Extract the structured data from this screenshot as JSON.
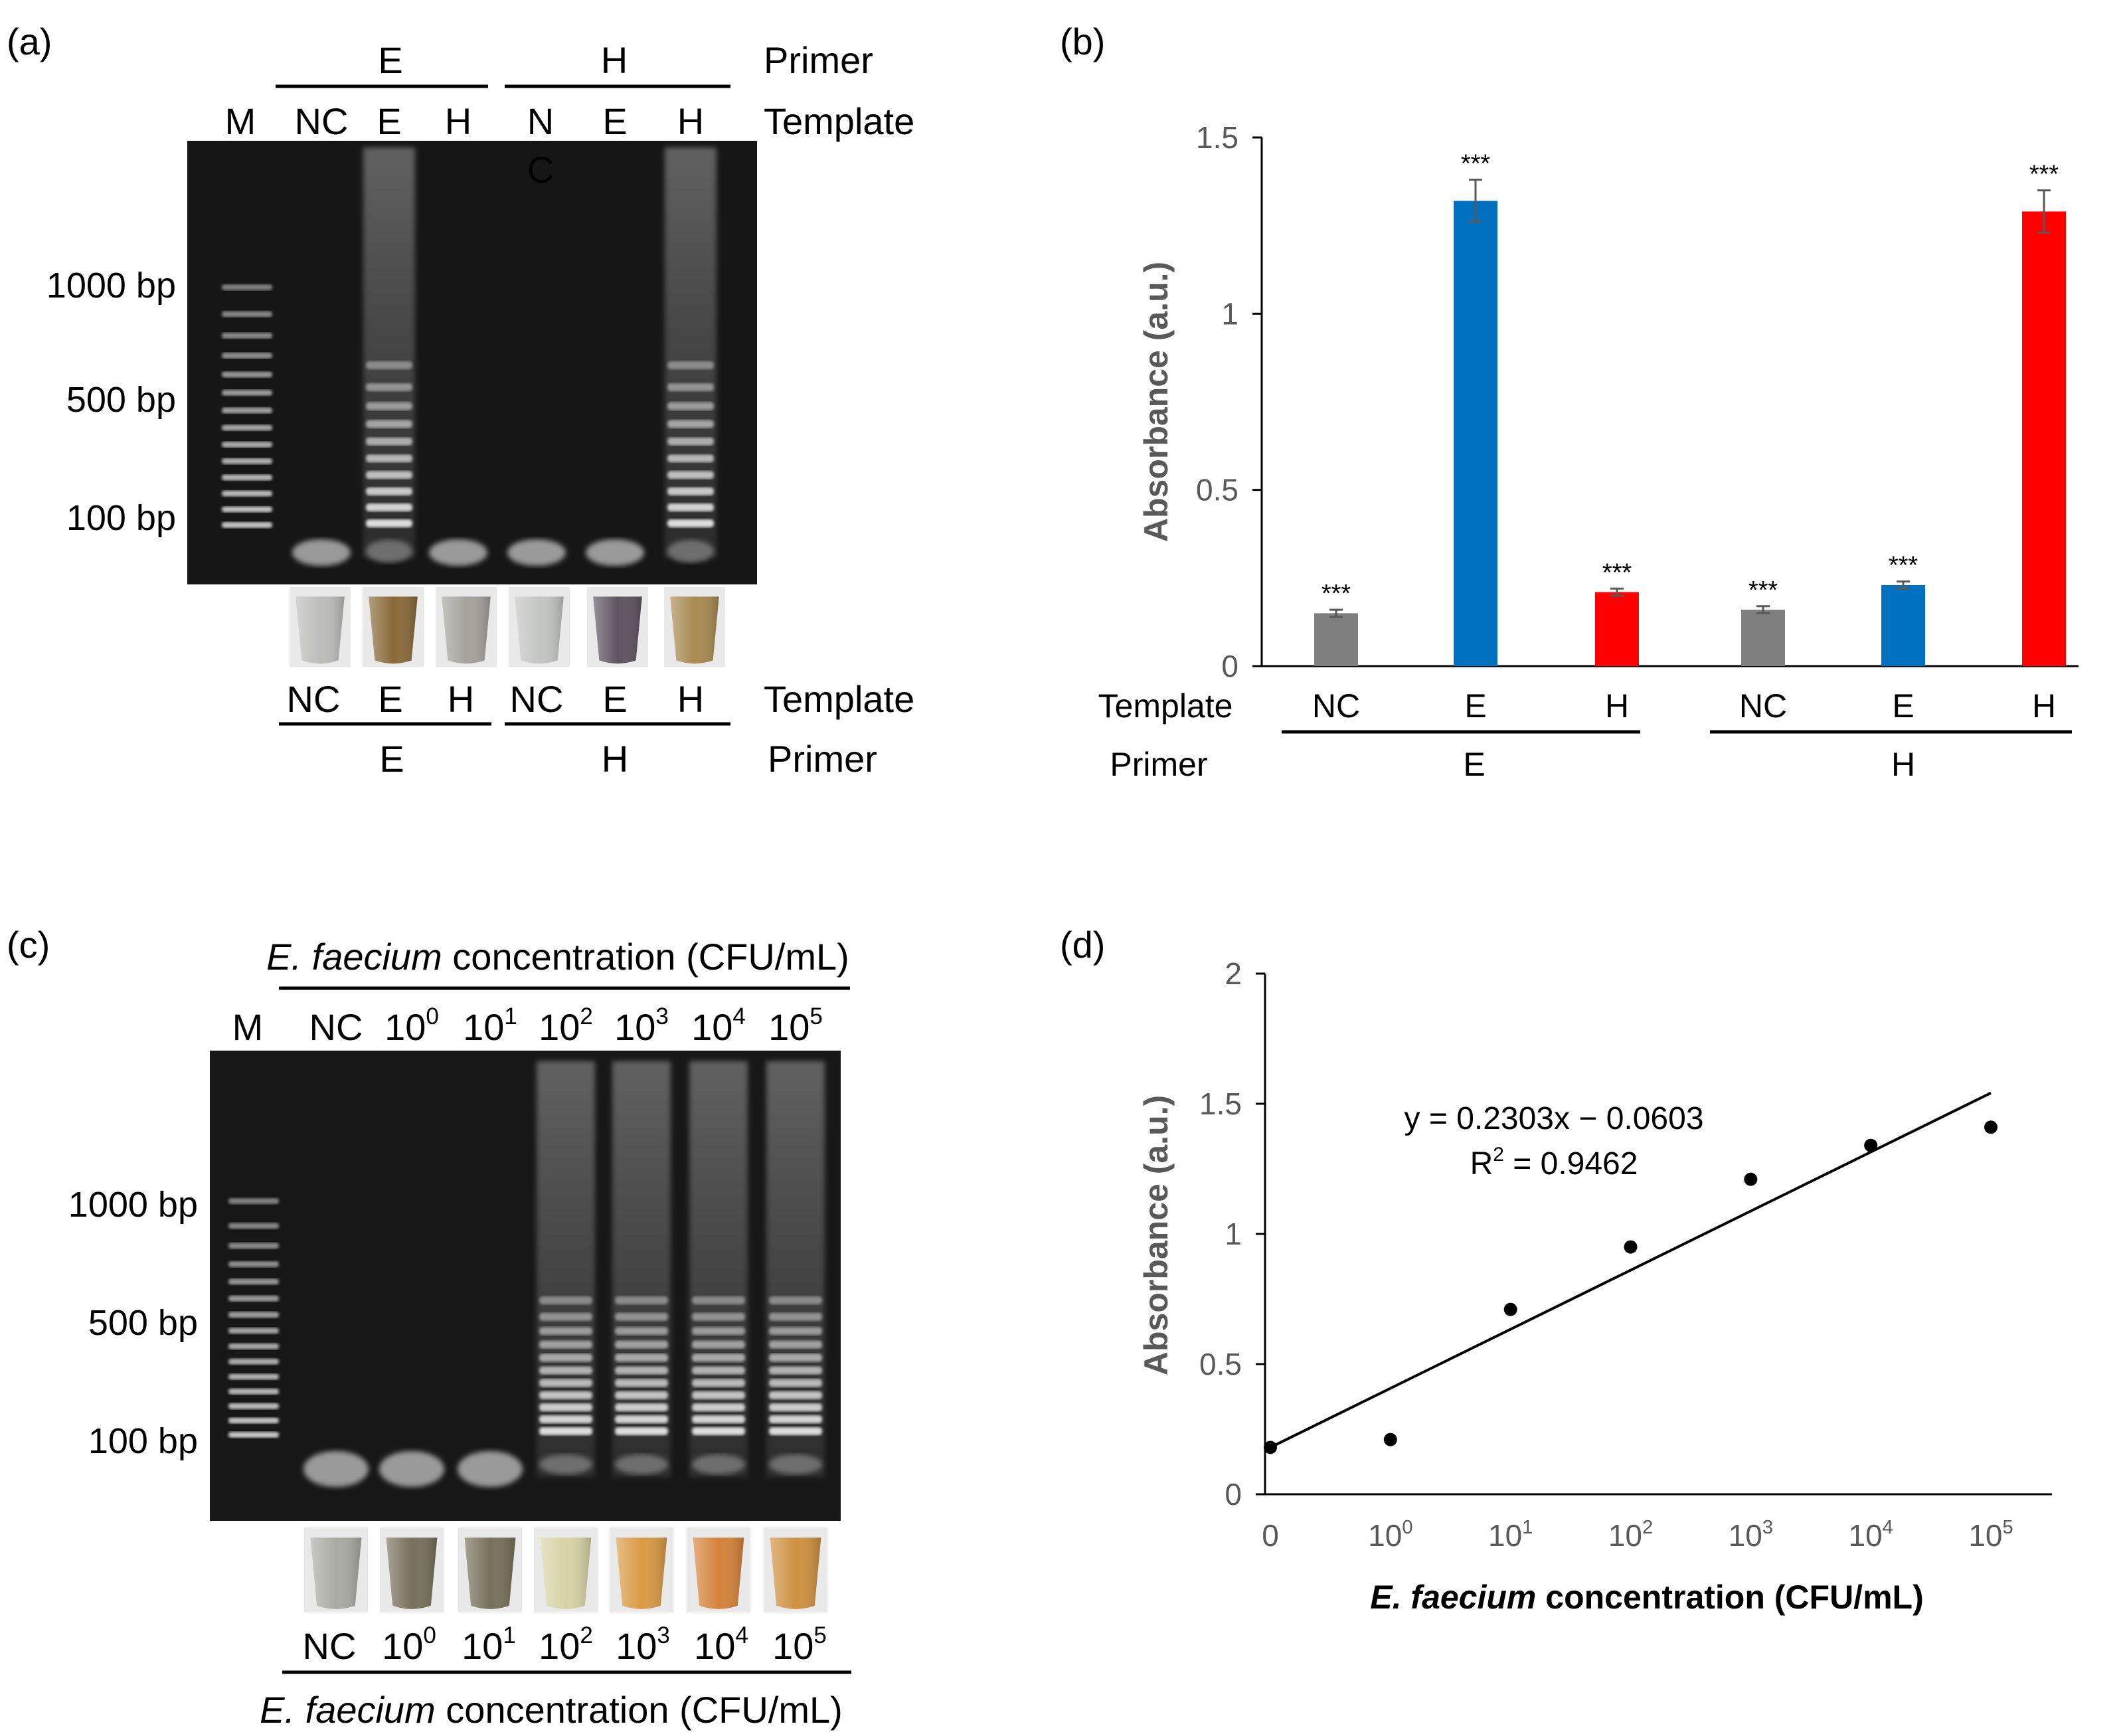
{
  "panels": {
    "a": {
      "label": "(a)",
      "primer_header": {
        "label": "Primer",
        "groups": [
          "E",
          "H"
        ]
      },
      "template_header": {
        "label": "Template",
        "lanes": [
          "M",
          "NC",
          "E",
          "H",
          "N",
          "E",
          "H"
        ],
        "stray": "C"
      },
      "bp_labels": [
        "1000 bp",
        "500 bp",
        "100 bp"
      ],
      "bottom_template": {
        "label": "Template",
        "lanes": [
          "NC",
          "E",
          "H",
          "NC",
          "E",
          "H"
        ]
      },
      "bottom_primer": {
        "label": "Primer",
        "groups": [
          "E",
          "H"
        ]
      },
      "tube_colors": [
        "#bcbdb8",
        "#8a6a3a",
        "#a4a29b",
        "#c3c5c2",
        "#5e5460",
        "#a98a52"
      ]
    },
    "b": {
      "label": "(b)"
    },
    "c": {
      "label": "(c)",
      "header": {
        "species": "E. faecium",
        "rest": " concentration (CFU/mL)"
      },
      "lane_marker": "M",
      "lanes": [
        {
          "base": "NC",
          "exp": ""
        },
        {
          "base": "10",
          "exp": "0"
        },
        {
          "base": "10",
          "exp": "1"
        },
        {
          "base": "10",
          "exp": "2"
        },
        {
          "base": "10",
          "exp": "3"
        },
        {
          "base": "10",
          "exp": "4"
        },
        {
          "base": "10",
          "exp": "5"
        }
      ],
      "bp_labels": [
        "1000 bp",
        "500 bp",
        "100 bp"
      ],
      "tube_colors": [
        "#a9aaa3",
        "#77705c",
        "#76705b",
        "#d8d3a6",
        "#d99a45",
        "#d6823b",
        "#cf9141"
      ],
      "footer": {
        "species": "E. faecium",
        "rest": " concentration (CFU/mL)"
      }
    },
    "d": {
      "label": "(d)"
    }
  },
  "chart_data": [
    {
      "type": "bar",
      "panel": "b",
      "ylabel": "Absorbance (a.u.)",
      "ylim": [
        0,
        1.5
      ],
      "yticks": [
        "0",
        "0.5",
        "1",
        "1.5"
      ],
      "row_labels": {
        "template": "Template",
        "primer": "Primer"
      },
      "templates": [
        "NC",
        "E",
        "H",
        "NC",
        "E",
        "H"
      ],
      "primer_groups": [
        "E",
        "H"
      ],
      "values": [
        0.15,
        1.32,
        0.21,
        0.16,
        0.23,
        1.29
      ],
      "errors": [
        0.01,
        0.06,
        0.01,
        0.01,
        0.01,
        0.06
      ],
      "colors": [
        "#7f7f7f",
        "#0070c0",
        "#ff0000",
        "#7f7f7f",
        "#0070c0",
        "#ff0000"
      ],
      "significance": [
        "***",
        "***",
        "***",
        "***",
        "***",
        "***"
      ]
    },
    {
      "type": "scatter",
      "panel": "d",
      "xlabel_italic": "E. faecium",
      "xlabel_rest": " concentration (CFU/mL)",
      "ylabel": "Absorbance (a.u.)",
      "ylim": [
        0,
        2
      ],
      "yticks": [
        "0",
        "0.5",
        "1",
        "1.5",
        "2"
      ],
      "xticks": [
        {
          "base": "0",
          "exp": ""
        },
        {
          "base": "10",
          "exp": "0"
        },
        {
          "base": "10",
          "exp": "1"
        },
        {
          "base": "10",
          "exp": "2"
        },
        {
          "base": "10",
          "exp": "3"
        },
        {
          "base": "10",
          "exp": "4"
        },
        {
          "base": "10",
          "exp": "5"
        }
      ],
      "x": [
        0,
        1,
        2,
        3,
        4,
        5,
        6
      ],
      "y": [
        0.18,
        0.21,
        0.71,
        0.95,
        1.21,
        1.34,
        1.41
      ],
      "trendline": {
        "slope": 0.2303,
        "intercept": -0.0603,
        "x_range": [
          0,
          6
        ]
      },
      "equation": "y = 0.2303x − 0.0603",
      "r2_prefix": "R",
      "r2_exp": "2",
      "r2_value": " = 0.9462"
    }
  ]
}
